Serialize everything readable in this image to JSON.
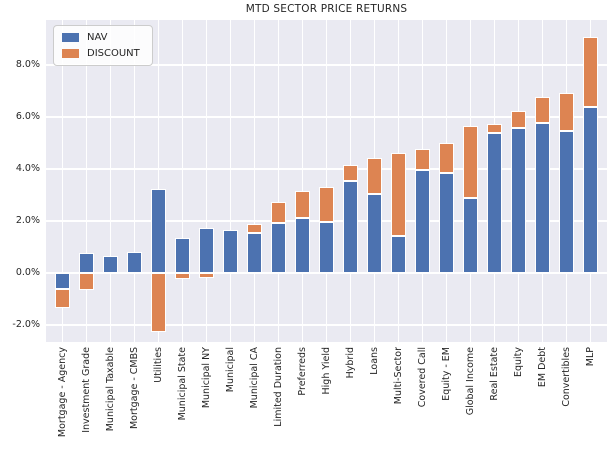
{
  "title": "MTD SECTOR PRICE RETURNS",
  "chart_data": {
    "type": "bar",
    "stacked": true,
    "title": "MTD SECTOR PRICE RETURNS",
    "xlabel": "",
    "ylabel": "",
    "categories": [
      "Mortgage - Agency",
      "Investment Grade",
      "Municipal Taxable",
      "Mortgage - CMBS",
      "Utilities",
      "Municipal State",
      "Municipal NY",
      "Municipal",
      "Municipal CA",
      "Limited Duration",
      "Preferreds",
      "High Yield",
      "Hybrid",
      "Loans",
      "Multi-Sector",
      "Covered Call",
      "Equity - EM",
      "Global Income",
      "Real Estate",
      "Equity",
      "EM Debt",
      "Convertibles",
      "MLP"
    ],
    "series": [
      {
        "name": "NAV",
        "color": "#4c72b0",
        "values": [
          -0.6,
          0.77,
          0.65,
          0.8,
          3.22,
          1.33,
          1.73,
          1.65,
          1.53,
          1.91,
          2.1,
          1.97,
          3.55,
          3.03,
          1.42,
          3.96,
          3.86,
          2.87,
          5.4,
          5.59,
          5.76,
          5.47,
          6.4
        ]
      },
      {
        "name": "DISCOUNT",
        "color": "#dd8452",
        "values": [
          -0.75,
          -0.64,
          0,
          0,
          -2.26,
          -0.21,
          -0.2,
          0,
          0.35,
          0.83,
          1.07,
          1.35,
          0.6,
          1.38,
          3.21,
          0.8,
          1.13,
          2.78,
          0.32,
          0.65,
          1.0,
          1.46,
          2.69
        ]
      }
    ],
    "yticks": [
      {
        "value": 8,
        "label": "8.0%"
      },
      {
        "value": 6,
        "label": "6.0%"
      },
      {
        "value": 4,
        "label": "4.0%"
      },
      {
        "value": 2,
        "label": "2.0%"
      },
      {
        "value": 0,
        "label": "0.0%"
      },
      {
        "value": -2,
        "label": "-2.0%"
      }
    ],
    "ylim": [
      -2.65,
      9.73
    ],
    "grid": true,
    "legend_position": "upper left",
    "colors": {
      "figure_bg": "#ffffff",
      "plot_bg": "#eaeaf2",
      "grid": "#ffffff",
      "text": "#262626"
    }
  }
}
